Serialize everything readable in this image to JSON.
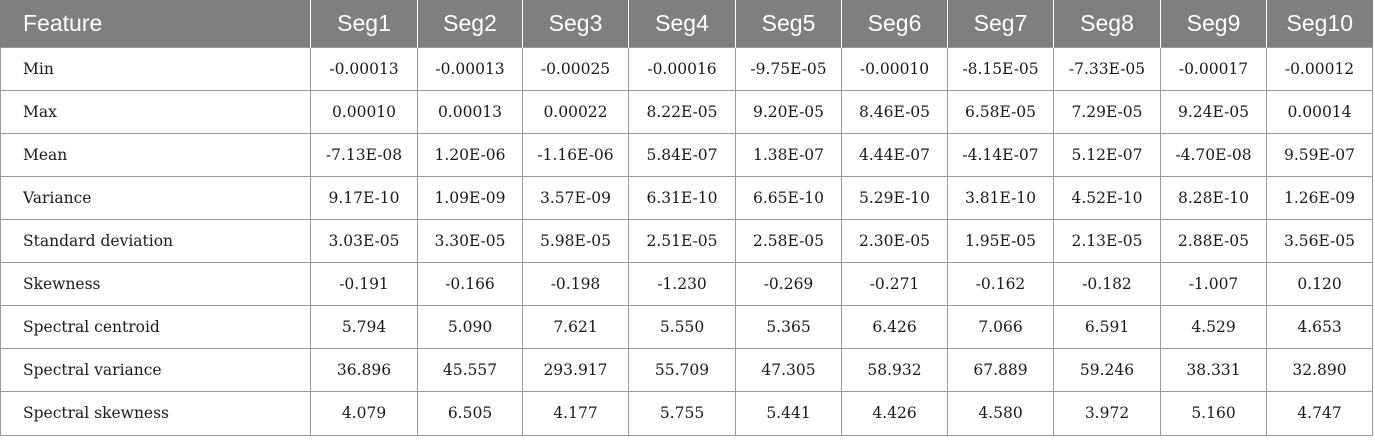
{
  "table": {
    "headers": [
      "Feature",
      "Seg1",
      "Seg2",
      "Seg3",
      "Seg4",
      "Seg5",
      "Seg6",
      "Seg7",
      "Seg8",
      "Seg9",
      "Seg10"
    ],
    "rows": [
      {
        "feature": "Min",
        "values": [
          "-0.00013",
          "-0.00013",
          "-0.00025",
          "-0.00016",
          "-9.75E-05",
          "-0.00010",
          "-8.15E-05",
          "-7.33E-05",
          "-0.00017",
          "-0.00012"
        ]
      },
      {
        "feature": "Max",
        "values": [
          "0.00010",
          "0.00013",
          "0.00022",
          "8.22E-05",
          "9.20E-05",
          "8.46E-05",
          "6.58E-05",
          "7.29E-05",
          "9.24E-05",
          "0.00014"
        ]
      },
      {
        "feature": "Mean",
        "values": [
          "-7.13E-08",
          "1.20E-06",
          "-1.16E-06",
          "5.84E-07",
          "1.38E-07",
          "4.44E-07",
          "-4.14E-07",
          "5.12E-07",
          "-4.70E-08",
          "9.59E-07"
        ]
      },
      {
        "feature": "Variance",
        "values": [
          "9.17E-10",
          "1.09E-09",
          "3.57E-09",
          "6.31E-10",
          "6.65E-10",
          "5.29E-10",
          "3.81E-10",
          "4.52E-10",
          "8.28E-10",
          "1.26E-09"
        ]
      },
      {
        "feature": "Standard deviation",
        "values": [
          "3.03E-05",
          "3.30E-05",
          "5.98E-05",
          "2.51E-05",
          "2.58E-05",
          "2.30E-05",
          "1.95E-05",
          "2.13E-05",
          "2.88E-05",
          "3.56E-05"
        ]
      },
      {
        "feature": "Skewness",
        "values": [
          "-0.191",
          "-0.166",
          "-0.198",
          "-1.230",
          "-0.269",
          "-0.271",
          "-0.162",
          "-0.182",
          "-1.007",
          "0.120"
        ]
      },
      {
        "feature": "Spectral centroid",
        "values": [
          "5.794",
          "5.090",
          "7.621",
          "5.550",
          "5.365",
          "6.426",
          "7.066",
          "6.591",
          "4.529",
          "4.653"
        ]
      },
      {
        "feature": "Spectral variance",
        "values": [
          "36.896",
          "45.557",
          "293.917",
          "55.709",
          "47.305",
          "58.932",
          "67.889",
          "59.246",
          "38.331",
          "32.890"
        ]
      },
      {
        "feature": "Spectral skewness",
        "values": [
          "4.079",
          "6.505",
          "4.177",
          "5.755",
          "5.441",
          "4.426",
          "4.580",
          "3.972",
          "5.160",
          "4.747"
        ]
      }
    ]
  }
}
